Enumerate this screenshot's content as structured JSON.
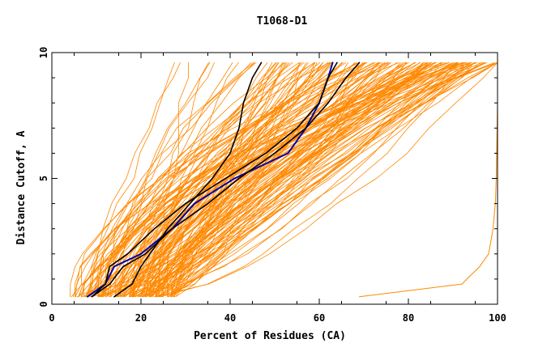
{
  "chart_data": {
    "type": "line",
    "title": "T1068-D1",
    "xlabel": "Percent of Residues (CA)",
    "ylabel": "Distance Cutoff, A",
    "xlim": [
      0,
      100
    ],
    "ylim": [
      0,
      10
    ],
    "x_ticks": [
      0,
      20,
      40,
      60,
      80,
      100
    ],
    "y_ticks": [
      0,
      5,
      10
    ],
    "y_levels": [
      0.3,
      0.8,
      1.5,
      2,
      3,
      4,
      5,
      6,
      7,
      8,
      9,
      9.6
    ],
    "colors": {
      "orange": "#ff8800",
      "black": "#000000",
      "blue": "#0000aa",
      "frame": "#000000"
    },
    "highlight_series": [
      {
        "name": "blue model",
        "color": "blue",
        "x": [
          8,
          12,
          14,
          20,
          27,
          32,
          41,
          53,
          57,
          60,
          62,
          63
        ]
      },
      {
        "name": "black model 1",
        "color": "black",
        "x": [
          9,
          13,
          16,
          21,
          27,
          35,
          42,
          50,
          57,
          62,
          66,
          69
        ]
      },
      {
        "name": "black model 2",
        "color": "black",
        "x": [
          14,
          18,
          20,
          22,
          26,
          31,
          36,
          40,
          42,
          43,
          45,
          47
        ]
      },
      {
        "name": "black model 3",
        "color": "black",
        "x": [
          9,
          12,
          13,
          17,
          23,
          30,
          39,
          48,
          55,
          60,
          62,
          64
        ]
      }
    ],
    "outlier_series": {
      "name": "outlier model",
      "color": "orange",
      "x": [
        69,
        92,
        96,
        98,
        99,
        99.5,
        99.7,
        99.8,
        99.9,
        100,
        100,
        100
      ]
    },
    "background_group": {
      "color": "orange",
      "count": 160,
      "start_x_range": [
        4,
        28
      ],
      "end_x_range": [
        17,
        100
      ]
    }
  }
}
